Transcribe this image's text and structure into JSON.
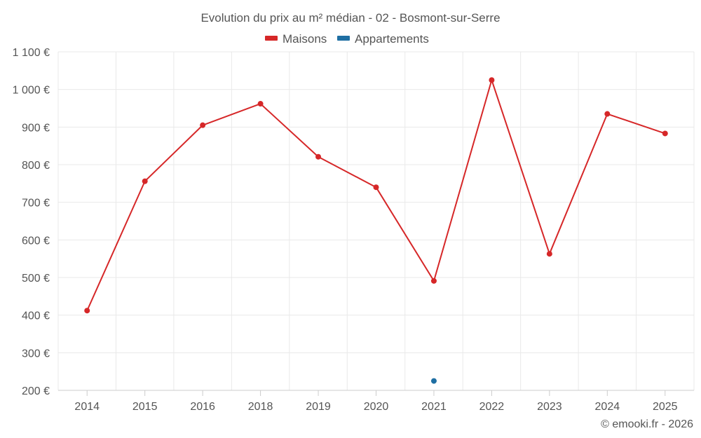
{
  "chart_data": {
    "type": "line",
    "title": "Evolution du prix au m² médian - 02 - Bosmont-sur-Serre",
    "categories": [
      "2014",
      "2015",
      "2016",
      "2018",
      "2019",
      "2020",
      "2021",
      "2022",
      "2023",
      "2024",
      "2025"
    ],
    "y_ticks": [
      "200 €",
      "300 €",
      "400 €",
      "500 €",
      "600 €",
      "700 €",
      "800 €",
      "900 €",
      "1 000 €",
      "1 100 €"
    ],
    "ylim": [
      200,
      1100
    ],
    "grid": true,
    "legend": "top-center",
    "series": [
      {
        "name": "Maisons",
        "color": "#d62728",
        "values": [
          412,
          756,
          905,
          962,
          821,
          740,
          491,
          1025,
          563,
          935,
          883
        ]
      },
      {
        "name": "Appartements",
        "color": "#1f6fa3",
        "values": [
          null,
          null,
          null,
          null,
          null,
          null,
          225,
          null,
          null,
          null,
          null
        ]
      }
    ],
    "credit": "© emooki.fr - 2026"
  }
}
